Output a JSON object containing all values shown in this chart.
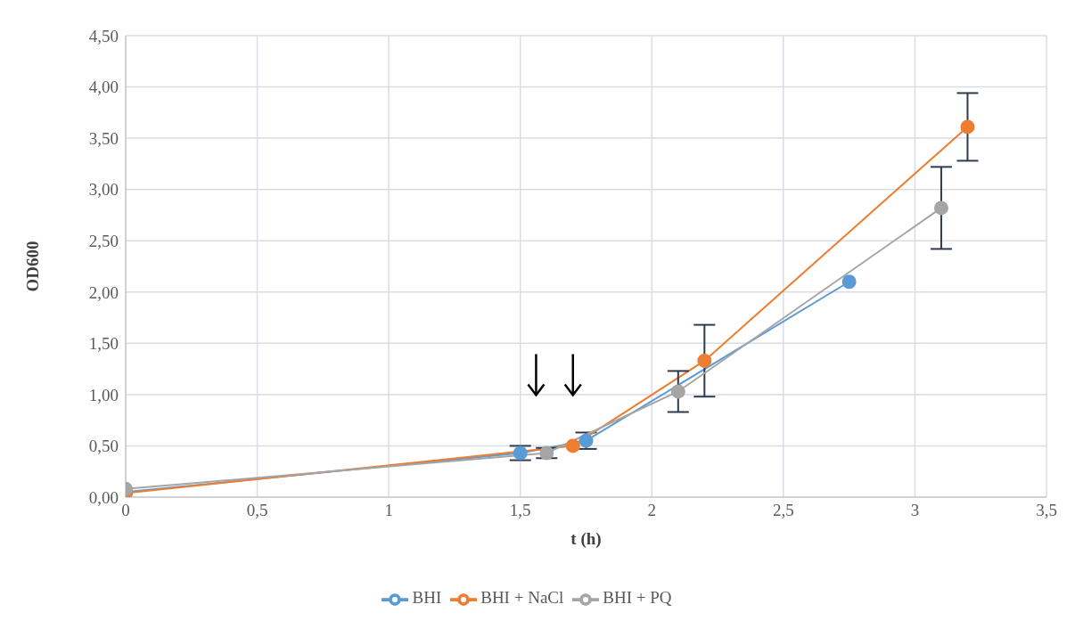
{
  "chart_data": {
    "type": "line",
    "xlabel": "t (h)",
    "ylabel": "OD600",
    "xlim": [
      0,
      3.5
    ],
    "xticks": [
      0,
      {
        "value": 0.5,
        "label": "0,5"
      },
      1,
      {
        "value": 1.5,
        "label": "1,5"
      },
      2,
      {
        "value": 2.5,
        "label": "2,5"
      },
      3,
      {
        "value": 3.5,
        "label": "3,5"
      }
    ],
    "ylim": [
      0,
      4.5
    ],
    "yticks": [
      {
        "value": 0,
        "label": "0,00"
      },
      {
        "value": 0.5,
        "label": "0,50"
      },
      {
        "value": 1,
        "label": "1,00"
      },
      {
        "value": 1.5,
        "label": "1,50"
      },
      {
        "value": 2,
        "label": "2,00"
      },
      {
        "value": 2.5,
        "label": "2,50"
      },
      {
        "value": 3,
        "label": "3,00"
      },
      {
        "value": 3.5,
        "label": "3,50"
      },
      {
        "value": 4,
        "label": "4,00"
      },
      {
        "value": 4.5,
        "label": "4,50"
      }
    ],
    "grid": true,
    "legend": "bottom",
    "marker": "circle",
    "line_style": "solid",
    "series": [
      {
        "name": "BHI",
        "color": "#5b9bd5",
        "x": [
          0,
          1.5,
          1.75,
          2.75
        ],
        "values": [
          0.05,
          0.43,
          0.55,
          2.1
        ],
        "errors": [
          null,
          0.07,
          0.08,
          null
        ]
      },
      {
        "name": "BHI + NaCl",
        "color": "#ed7d31",
        "x": [
          0,
          1.7,
          2.2,
          3.2
        ],
        "values": [
          0.04,
          0.5,
          1.33,
          3.61
        ],
        "errors": [
          null,
          null,
          0.35,
          0.33
        ]
      },
      {
        "name": "BHI + PQ",
        "color": "#a5a5a5",
        "x": [
          0,
          1.6,
          2.1,
          3.1
        ],
        "values": [
          0.08,
          0.43,
          1.03,
          2.82
        ],
        "errors": [
          null,
          0.05,
          0.2,
          0.4
        ]
      }
    ]
  }
}
